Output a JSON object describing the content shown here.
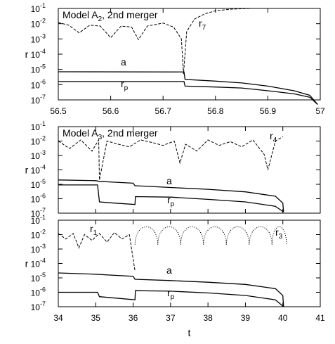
{
  "chart_data": [
    {
      "type": "line",
      "title": "Model A_2, 2nd merger",
      "title_main": "Model A",
      "title_sub": "2",
      "title_rest": ", 2nd merger",
      "ylabel": "r",
      "xlabel": "",
      "xlim": [
        56.5,
        57.0
      ],
      "ylim_exp": [
        -7,
        -1
      ],
      "yscale": "log",
      "x_ticks": [
        "56.5",
        "56.6",
        "56.7",
        "56.8",
        "56.9",
        "57"
      ],
      "y_tick_exponents": [
        "-7",
        "-6",
        "-5",
        "-4",
        "-3",
        "-2",
        "-1"
      ],
      "y_tick_base": "10",
      "series": [
        {
          "name": "a",
          "style": "solid",
          "points": [
            [
              56.5,
              7e-06
            ],
            [
              56.74,
              6.8e-06
            ],
            [
              56.742,
              2.2e-06
            ],
            [
              56.8,
              1.7e-06
            ],
            [
              56.85,
              1.3e-06
            ],
            [
              56.9,
              8e-07
            ],
            [
              56.95,
              4e-07
            ],
            [
              56.98,
              2e-07
            ],
            [
              56.995,
              5e-08
            ]
          ]
        },
        {
          "name": "r_p",
          "style": "solid",
          "points": [
            [
              56.5,
              1.6e-06
            ],
            [
              56.74,
              1.6e-06
            ],
            [
              56.742,
              8e-07
            ],
            [
              56.8,
              7e-07
            ],
            [
              56.85,
              6e-07
            ],
            [
              56.9,
              4e-07
            ],
            [
              56.95,
              2.5e-07
            ],
            [
              56.98,
              1.5e-07
            ],
            [
              56.995,
              5e-08
            ]
          ]
        },
        {
          "name": "r_7",
          "style": "dashed",
          "points": [
            [
              56.5,
              0.012
            ],
            [
              56.52,
              0.008
            ],
            [
              56.54,
              0.0025
            ],
            [
              56.56,
              0.008
            ],
            [
              56.58,
              0.007
            ],
            [
              56.6,
              0.0012
            ],
            [
              56.62,
              0.007
            ],
            [
              56.64,
              0.006
            ],
            [
              56.653,
              0.0009
            ],
            [
              56.67,
              0.007
            ],
            [
              56.7,
              0.011
            ],
            [
              56.72,
              0.006
            ],
            [
              56.735,
              0.001
            ],
            [
              56.739,
              5e-06
            ],
            [
              56.745,
              0.003
            ],
            [
              56.76,
              0.02
            ],
            [
              56.78,
              0.045
            ],
            [
              56.8,
              0.07
            ],
            [
              56.83,
              0.09
            ],
            [
              56.87,
              0.1
            ],
            [
              56.9,
              0.1
            ]
          ]
        }
      ],
      "labels": {
        "a": "a",
        "rp_main": "r",
        "rp_sub": "p",
        "r7_main": "r",
        "r7_sub": "7"
      }
    },
    {
      "type": "line",
      "title": "Model A_3, 2nd merger",
      "title_main": "Model A",
      "title_sub": "3",
      "title_rest": ", 2nd merger",
      "ylabel": "r",
      "xlabel": "",
      "xlim": [
        34,
        41
      ],
      "ylim_exp": [
        -7,
        -1
      ],
      "yscale": "log",
      "x_ticks": [],
      "y_tick_exponents": [
        "-7",
        "-6",
        "-5",
        "-4",
        "-3",
        "-2",
        "-1"
      ],
      "y_tick_base": "10",
      "series": [
        {
          "name": "a",
          "style": "solid",
          "points": [
            [
              34,
              2e-05
            ],
            [
              35.0,
              1.8e-05
            ],
            [
              35.1,
              1.6e-05
            ],
            [
              35.5,
              1.4e-05
            ],
            [
              36.0,
              1.2e-05
            ],
            [
              36.05,
              8e-06
            ],
            [
              37,
              6e-06
            ],
            [
              38,
              4.5e-06
            ],
            [
              39,
              3e-06
            ],
            [
              39.8,
              1.5e-06
            ],
            [
              40.0,
              5e-07
            ],
            [
              40.02,
              1.2e-07
            ]
          ]
        },
        {
          "name": "r_p",
          "style": "solid",
          "points": [
            [
              34,
              9e-06
            ],
            [
              35.05,
              9e-06
            ],
            [
              35.1,
              6e-07
            ],
            [
              35.5,
              5e-07
            ],
            [
              36.05,
              4e-07
            ],
            [
              36.06,
              1.4e-06
            ],
            [
              37,
              1.3e-06
            ],
            [
              38,
              9e-07
            ],
            [
              39,
              6e-07
            ],
            [
              39.8,
              3e-07
            ],
            [
              40.02,
              1.2e-07
            ]
          ]
        },
        {
          "name": "r_4",
          "style": "dashed",
          "points": [
            [
              34,
              0.01
            ],
            [
              34.3,
              0.003
            ],
            [
              34.6,
              0.012
            ],
            [
              34.9,
              0.002
            ],
            [
              35.08,
              0.012
            ],
            [
              35.1,
              2e-05
            ],
            [
              35.3,
              0.01
            ],
            [
              35.6,
              0.006
            ],
            [
              35.9,
              0.004
            ],
            [
              36.2,
              0.012
            ],
            [
              36.5,
              0.008
            ],
            [
              36.8,
              0.005
            ],
            [
              37.1,
              0.01
            ],
            [
              37.25,
              0.0003
            ],
            [
              37.4,
              0.006
            ],
            [
              37.7,
              0.002
            ],
            [
              38.0,
              0.012
            ],
            [
              38.3,
              0.005
            ],
            [
              38.6,
              0.009
            ],
            [
              38.9,
              0.004
            ],
            [
              39.2,
              0.012
            ],
            [
              39.5,
              0.0012
            ],
            [
              39.6,
              0.0001
            ],
            [
              39.8,
              0.01
            ],
            [
              40.0,
              0.02
            ]
          ]
        }
      ],
      "labels": {
        "a": "a",
        "rp_main": "r",
        "rp_sub": "p",
        "r4_main": "r",
        "r4_sub": "4"
      }
    },
    {
      "type": "line",
      "title": "",
      "ylabel": "r",
      "xlabel": "t",
      "xlim": [
        34,
        41
      ],
      "ylim_exp": [
        -7,
        -1
      ],
      "yscale": "log",
      "x_ticks": [
        "34",
        "35",
        "36",
        "37",
        "38",
        "39",
        "40",
        "41"
      ],
      "y_tick_exponents": [
        "-7",
        "-6",
        "-5",
        "-4",
        "-3",
        "-2",
        "-1"
      ],
      "y_tick_base": "10",
      "series": [
        {
          "name": "a",
          "style": "solid",
          "points": [
            [
              34,
              2.2e-05
            ],
            [
              35.0,
              1.8e-05
            ],
            [
              35.5,
              1.5e-05
            ],
            [
              36.0,
              1.3e-05
            ],
            [
              36.05,
              8e-06
            ],
            [
              37,
              6.5e-06
            ],
            [
              38,
              5e-06
            ],
            [
              39,
              3.5e-06
            ],
            [
              39.8,
              1.8e-06
            ],
            [
              40.0,
              6e-07
            ],
            [
              40.02,
              1e-07
            ]
          ]
        },
        {
          "name": "r_p",
          "style": "solid",
          "points": [
            [
              34,
              1e-06
            ],
            [
              35.05,
              1e-06
            ],
            [
              35.1,
              5e-07
            ],
            [
              36.05,
              3e-07
            ],
            [
              36.06,
              1.3e-06
            ],
            [
              37,
              1.2e-06
            ],
            [
              38,
              9e-07
            ],
            [
              39,
              6e-07
            ],
            [
              39.8,
              3e-07
            ],
            [
              40.02,
              1e-07
            ]
          ]
        },
        {
          "name": "r_1",
          "style": "dashed",
          "points": [
            [
              34,
              0.012
            ],
            [
              34.2,
              0.005
            ],
            [
              34.4,
              0.012
            ],
            [
              34.55,
              0.0012
            ],
            [
              34.7,
              0.01
            ],
            [
              34.9,
              0.004
            ],
            [
              35.1,
              0.012
            ],
            [
              35.3,
              0.003
            ],
            [
              35.5,
              0.014
            ],
            [
              35.7,
              0.005
            ],
            [
              35.9,
              0.01
            ],
            [
              36.05,
              3e-05
            ]
          ]
        },
        {
          "name": "r_3",
          "style": "dotted",
          "arches": [
            [
              36.05,
              36.66
            ],
            [
              36.66,
              37.27
            ],
            [
              37.27,
              37.88
            ],
            [
              37.88,
              38.49
            ],
            [
              38.49,
              39.1
            ],
            [
              39.1,
              39.71
            ],
            [
              39.71,
              40.1
            ]
          ],
          "peak": 0.09,
          "trough": 0.002
        }
      ],
      "labels": {
        "a": "a",
        "rp_main": "r",
        "rp_sub": "p",
        "r1_main": "r",
        "r1_sub": "1",
        "r3_main": "r",
        "r3_sub": "3"
      }
    }
  ]
}
